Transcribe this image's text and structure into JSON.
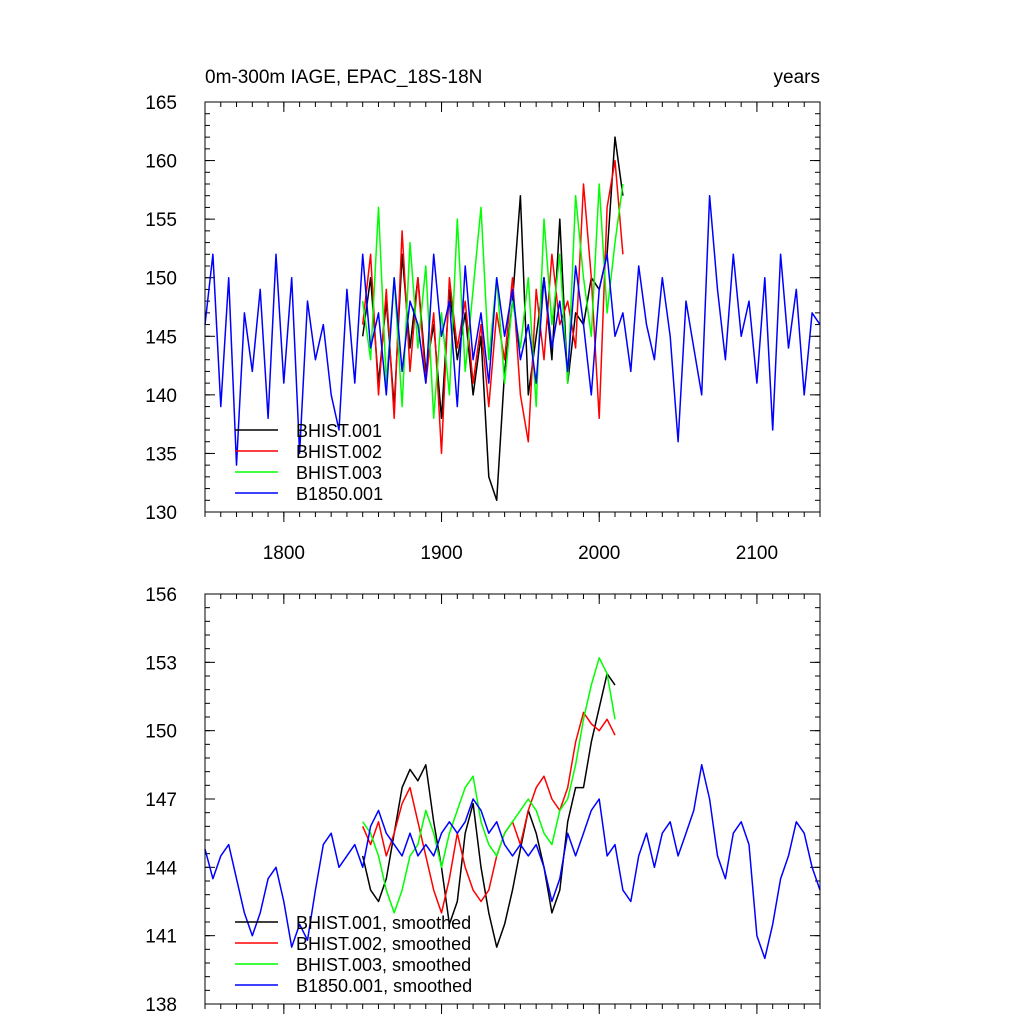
{
  "chart_data": [
    {
      "type": "line",
      "title": "0m-300m IAGE, EPAC_18S-18N",
      "units": "years",
      "xlim": [
        1750,
        2140
      ],
      "ylim": [
        130,
        165
      ],
      "xticks": [
        1800,
        1900,
        2000,
        2100
      ],
      "xtick_labels": [
        "1800",
        "1900",
        "2000",
        "2100"
      ],
      "yticks": [
        130,
        135,
        140,
        145,
        150,
        155,
        160,
        165
      ],
      "ytick_labels": [
        "130",
        "135",
        "140",
        "145",
        "150",
        "155",
        "160",
        "165"
      ],
      "legend_position": "bottom-left",
      "series": [
        {
          "name": "BHIST.001",
          "color": "#000000",
          "x": [
            1850,
            1855,
            1860,
            1865,
            1870,
            1875,
            1880,
            1885,
            1890,
            1895,
            1900,
            1905,
            1910,
            1915,
            1920,
            1925,
            1930,
            1935,
            1940,
            1945,
            1950,
            1955,
            1960,
            1965,
            1970,
            1975,
            1980,
            1985,
            1990,
            1995,
            2000,
            2005,
            2010,
            2015
          ],
          "y": [
            145,
            150,
            141,
            148,
            139,
            152,
            144,
            150,
            142,
            146,
            138,
            149,
            143,
            147,
            140,
            145,
            133,
            131,
            142,
            148,
            157,
            140,
            145,
            150,
            143,
            155,
            141,
            147,
            146,
            150,
            149,
            152,
            162,
            157
          ]
        },
        {
          "name": "BHIST.002",
          "color": "#ff0000",
          "x": [
            1850,
            1855,
            1860,
            1865,
            1870,
            1875,
            1880,
            1885,
            1890,
            1895,
            1900,
            1905,
            1910,
            1915,
            1920,
            1925,
            1930,
            1935,
            1940,
            1945,
            1950,
            1955,
            1960,
            1965,
            1970,
            1975,
            1980,
            1985,
            1990,
            1995,
            2000,
            2005,
            2010,
            2015
          ],
          "y": [
            146,
            152,
            140,
            149,
            138,
            154,
            142,
            150,
            141,
            147,
            135,
            150,
            144,
            148,
            141,
            146,
            139,
            147,
            143,
            150,
            140,
            136,
            149,
            143,
            152,
            146,
            148,
            144,
            158,
            150,
            138,
            156,
            160,
            152
          ]
        },
        {
          "name": "BHIST.003",
          "color": "#00ff00",
          "x": [
            1850,
            1855,
            1860,
            1865,
            1870,
            1875,
            1880,
            1885,
            1890,
            1895,
            1900,
            1905,
            1910,
            1915,
            1920,
            1925,
            1930,
            1935,
            1940,
            1945,
            1950,
            1955,
            1960,
            1965,
            1970,
            1975,
            1980,
            1985,
            1990,
            1995,
            2000,
            2005,
            2010,
            2015
          ],
          "y": [
            148,
            143,
            156,
            141,
            150,
            139,
            153,
            144,
            151,
            138,
            147,
            140,
            155,
            142,
            149,
            156,
            143,
            150,
            141,
            148,
            144,
            150,
            139,
            155,
            146,
            152,
            141,
            157,
            150,
            145,
            158,
            147,
            153,
            158
          ]
        },
        {
          "name": "B1850.001",
          "color": "#0000ff",
          "x": [
            1750,
            1755,
            1760,
            1765,
            1770,
            1775,
            1780,
            1785,
            1790,
            1795,
            1800,
            1805,
            1810,
            1815,
            1820,
            1825,
            1830,
            1835,
            1840,
            1845,
            1850,
            1855,
            1860,
            1865,
            1870,
            1875,
            1880,
            1885,
            1890,
            1895,
            1900,
            1905,
            1910,
            1915,
            1920,
            1925,
            1930,
            1935,
            1940,
            1945,
            1950,
            1955,
            1960,
            1965,
            1970,
            1975,
            1980,
            1985,
            1990,
            1995,
            2000,
            2005,
            2010,
            2015,
            2020,
            2025,
            2030,
            2035,
            2040,
            2045,
            2050,
            2055,
            2060,
            2065,
            2070,
            2075,
            2080,
            2085,
            2090,
            2095,
            2100,
            2105,
            2110,
            2115,
            2120,
            2125,
            2130,
            2135,
            2140
          ],
          "y": [
            146,
            152,
            139,
            150,
            134,
            147,
            142,
            149,
            138,
            152,
            141,
            150,
            135,
            148,
            143,
            146,
            140,
            137,
            149,
            141,
            152,
            144,
            147,
            140,
            150,
            142,
            148,
            146,
            141,
            152,
            145,
            148,
            139,
            151,
            143,
            147,
            141,
            150,
            145,
            149,
            143,
            146,
            141,
            150,
            144,
            148,
            142,
            151,
            146,
            140,
            149,
            152,
            145,
            147,
            142,
            151,
            146,
            143,
            150,
            145,
            136,
            148,
            144,
            140,
            157,
            149,
            143,
            152,
            145,
            148,
            141,
            150,
            137,
            152,
            144,
            149,
            140,
            147,
            146
          ]
        }
      ]
    },
    {
      "type": "line",
      "xlim": [
        1750,
        2140
      ],
      "ylim": [
        138,
        156
      ],
      "xticks": [
        1800,
        1900,
        2000,
        2100
      ],
      "yticks": [
        138,
        141,
        144,
        147,
        150,
        153,
        156
      ],
      "ytick_labels": [
        "138",
        "141",
        "144",
        "147",
        "150",
        "153",
        "156"
      ],
      "legend_position": "bottom-left",
      "series": [
        {
          "name": "BHIST.001, smoothed",
          "color": "#000000",
          "x": [
            1850,
            1855,
            1860,
            1865,
            1870,
            1875,
            1880,
            1885,
            1890,
            1895,
            1900,
            1905,
            1910,
            1915,
            1920,
            1925,
            1930,
            1935,
            1940,
            1945,
            1950,
            1955,
            1960,
            1965,
            1970,
            1975,
            1980,
            1985,
            1990,
            1995,
            2000,
            2005,
            2010
          ],
          "y": [
            144.5,
            143,
            142.5,
            143.5,
            145.5,
            147.5,
            148.3,
            147.8,
            148.5,
            146,
            144,
            141.5,
            142.5,
            145.5,
            146.8,
            144,
            142,
            140.5,
            141.5,
            143,
            144.8,
            146.5,
            145.5,
            144,
            142,
            143,
            146,
            147.5,
            147.5,
            149.5,
            151,
            152.5,
            152
          ]
        },
        {
          "name": "BHIST.002, smoothed",
          "color": "#ff0000",
          "x": [
            1850,
            1855,
            1860,
            1865,
            1870,
            1875,
            1880,
            1885,
            1890,
            1895,
            1900,
            1905,
            1910,
            1915,
            1920,
            1925,
            1930,
            1935,
            1940,
            1945,
            1950,
            1955,
            1960,
            1965,
            1970,
            1975,
            1980,
            1985,
            1990,
            1995,
            2000,
            2005,
            2010
          ],
          "y": [
            145.8,
            145,
            146,
            144.5,
            145.5,
            146.8,
            147.5,
            146,
            144.5,
            143,
            142,
            143.5,
            145.5,
            144,
            143,
            142.5,
            143,
            144.5,
            145.5,
            146,
            145,
            146.5,
            147.5,
            148,
            147,
            146.5,
            147.5,
            149.5,
            150.8,
            150.3,
            150,
            150.5,
            149.8
          ]
        },
        {
          "name": "BHIST.003, smoothed",
          "color": "#00ff00",
          "x": [
            1850,
            1855,
            1860,
            1865,
            1870,
            1875,
            1880,
            1885,
            1890,
            1895,
            1900,
            1905,
            1910,
            1915,
            1920,
            1925,
            1930,
            1935,
            1940,
            1945,
            1950,
            1955,
            1960,
            1965,
            1970,
            1975,
            1980,
            1985,
            1990,
            1995,
            2000,
            2005,
            2010
          ],
          "y": [
            146,
            145.5,
            144.5,
            143,
            142,
            143,
            144.5,
            145,
            146.5,
            145.5,
            144,
            145.5,
            146.5,
            147.5,
            148,
            146,
            145,
            144.5,
            145.5,
            146,
            146.5,
            147,
            146.5,
            145.5,
            145,
            146.5,
            147,
            148.5,
            150.5,
            152,
            153.2,
            152.5,
            150.5
          ]
        },
        {
          "name": "B1850.001, smoothed",
          "color": "#0000ff",
          "x": [
            1750,
            1755,
            1760,
            1765,
            1770,
            1775,
            1780,
            1785,
            1790,
            1795,
            1800,
            1805,
            1810,
            1815,
            1820,
            1825,
            1830,
            1835,
            1840,
            1845,
            1850,
            1855,
            1860,
            1865,
            1870,
            1875,
            1880,
            1885,
            1890,
            1895,
            1900,
            1905,
            1910,
            1915,
            1920,
            1925,
            1930,
            1935,
            1940,
            1945,
            1950,
            1955,
            1960,
            1965,
            1970,
            1975,
            1980,
            1985,
            1990,
            1995,
            2000,
            2005,
            2010,
            2015,
            2020,
            2025,
            2030,
            2035,
            2040,
            2045,
            2050,
            2055,
            2060,
            2065,
            2070,
            2075,
            2080,
            2085,
            2090,
            2095,
            2100,
            2105,
            2110,
            2115,
            2120,
            2125,
            2130,
            2135,
            2140
          ],
          "y": [
            144.8,
            143.5,
            144.5,
            145,
            143.5,
            142,
            141,
            142,
            143.5,
            144,
            142.5,
            140.5,
            141.5,
            140.8,
            143,
            145,
            145.5,
            144,
            144.5,
            145,
            144,
            145.8,
            146.5,
            145.5,
            145,
            144.5,
            145.5,
            144.5,
            145,
            144.5,
            145.5,
            146,
            145.5,
            146,
            147,
            146.5,
            145.5,
            146,
            145,
            144.5,
            145,
            144.5,
            145,
            144,
            142.5,
            143.5,
            145.5,
            144.5,
            145.5,
            146.5,
            147,
            144.5,
            145,
            143,
            142.5,
            144.5,
            145.5,
            144,
            145.5,
            146,
            144.5,
            145.5,
            146.5,
            148.5,
            147,
            144.5,
            143.5,
            145.5,
            146,
            145,
            141,
            140,
            141.5,
            143.5,
            144.5,
            146,
            145.5,
            144,
            143
          ]
        }
      ]
    }
  ]
}
